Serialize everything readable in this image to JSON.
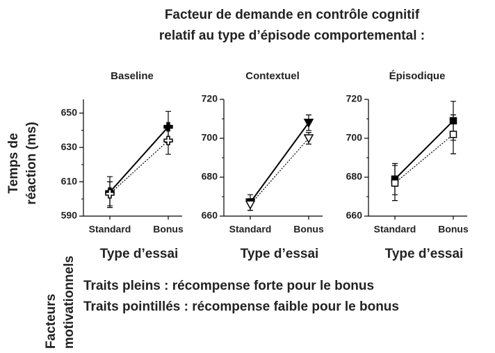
{
  "title": [
    "Facteur de demande en contrôle cognitif",
    "relatif au type d’épisode comportemental :"
  ],
  "ylabel": [
    "Temps de",
    "réaction (ms)"
  ],
  "side_label": [
    "Facteurs",
    "motivationnels"
  ],
  "legend": [
    "Traits pleins : récompense forte pour le bonus",
    "Traits pointillés : récompense faible pour le bonus"
  ],
  "chart_data": [
    {
      "type": "line",
      "title": "Baseline",
      "xlabel": "Type d’essai",
      "categories": [
        "Standard",
        "Bonus"
      ],
      "ylim": [
        590,
        658
      ],
      "yticks": [
        590,
        610,
        630,
        650
      ],
      "minor_yticks": [
        600,
        620,
        640
      ],
      "marker": "cross",
      "series": [
        {
          "style": "solid",
          "color": "#000000",
          "values": [
            604,
            642
          ],
          "errors": [
            9,
            9
          ]
        },
        {
          "style": "dotted",
          "color": "#000000",
          "values": [
            603,
            634
          ],
          "errors": [
            7,
            8
          ]
        }
      ]
    },
    {
      "type": "line",
      "title": "Contextuel",
      "xlabel": "Type d’essai",
      "categories": [
        "Standard",
        "Bonus"
      ],
      "ylim": [
        660,
        720
      ],
      "yticks": [
        660,
        680,
        700,
        720
      ],
      "minor_yticks": [
        670,
        690,
        710
      ],
      "marker": "triangle-down",
      "series": [
        {
          "style": "solid",
          "color": "#000000",
          "values": [
            667,
            708
          ],
          "errors": [
            4,
            4
          ]
        },
        {
          "style": "dotted",
          "color": "#000000",
          "values": [
            666,
            700
          ],
          "errors": [
            3,
            3
          ]
        }
      ]
    },
    {
      "type": "line",
      "title": "Épisodique",
      "xlabel": "Type d’essai",
      "categories": [
        "Standard",
        "Bonus"
      ],
      "ylim": [
        660,
        720
      ],
      "yticks": [
        660,
        680,
        700,
        720
      ],
      "minor_yticks": [
        670,
        690,
        710
      ],
      "marker": "square",
      "series": [
        {
          "style": "solid",
          "color": "#000000",
          "values": [
            679,
            709
          ],
          "errors": [
            8,
            10
          ]
        },
        {
          "style": "dotted",
          "color": "#000000",
          "values": [
            677,
            702
          ],
          "errors": [
            9,
            10
          ]
        }
      ]
    }
  ]
}
